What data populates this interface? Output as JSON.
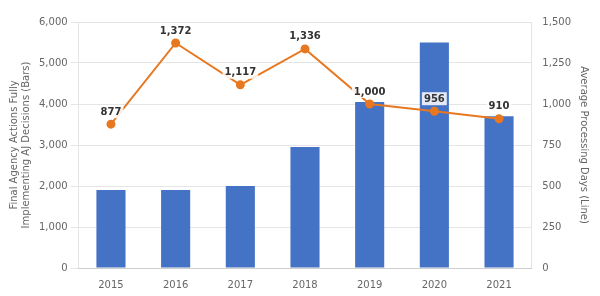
{
  "chart_data": {
    "type": "bar",
    "categories": [
      "2015",
      "2016",
      "2017",
      "2018",
      "2019",
      "2020",
      "2021"
    ],
    "series": [
      {
        "type": "bar",
        "color": "#4472c4",
        "values": [
          1900,
          1900,
          2000,
          2950,
          4050,
          5500,
          3700
        ]
      },
      {
        "type": "line",
        "axis": "y2",
        "color": "#e87820",
        "marker": "circle",
        "values": [
          877,
          1372,
          1117,
          1336,
          1000,
          956,
          910
        ],
        "data_labels": true,
        "value_labels": [
          "877",
          "1,372",
          "1,117",
          "1,336",
          "1,000",
          "956",
          "910"
        ]
      }
    ],
    "ylabel": "Final Agency Actions Fully\nImplementing AJ Decisions (Bars)",
    "y2label": "Average Processing Days (Line)",
    "ylim": [
      0,
      6000
    ],
    "yticks": [
      0,
      {
        "value": 1000,
        "label": "1,000"
      },
      {
        "value": 2000,
        "label": "2,000"
      },
      {
        "value": 3000,
        "label": "3,000"
      },
      {
        "value": 4000,
        "label": "4,000"
      },
      {
        "value": 5000,
        "label": "5,000"
      },
      {
        "value": 6000,
        "label": "6,000"
      }
    ],
    "y2lim": [
      0,
      1500
    ],
    "y2ticks": [
      0,
      250,
      500,
      750,
      {
        "value": 1000,
        "label": "1,000"
      },
      {
        "value": 1250,
        "label": "1,250"
      },
      {
        "value": 1500,
        "label": "1,500"
      }
    ],
    "grid": true
  }
}
